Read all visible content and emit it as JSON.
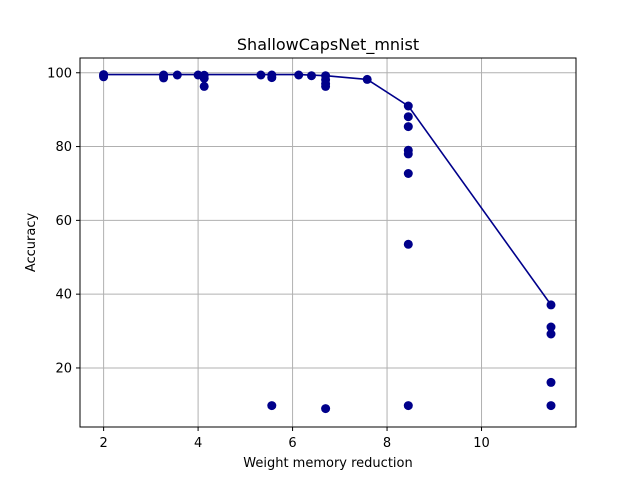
{
  "chart_data": {
    "type": "scatter",
    "title": "ShallowCapsNet_mnist",
    "xlabel": "Weight memory reduction",
    "ylabel": "Accuracy",
    "xlim": [
      1.5,
      12.0
    ],
    "ylim": [
      4.0,
      104.0
    ],
    "xticks": [
      2,
      4,
      6,
      8,
      10
    ],
    "yticks": [
      20,
      40,
      60,
      80,
      100
    ],
    "grid": true,
    "colors": {
      "marker": "#00008b",
      "line": "#00008b",
      "grid": "#b0b0b0"
    },
    "points": [
      {
        "x": 2.0,
        "y": 99.5
      },
      {
        "x": 2.0,
        "y": 99.2
      },
      {
        "x": 2.0,
        "y": 98.9
      },
      {
        "x": 3.27,
        "y": 99.4
      },
      {
        "x": 3.27,
        "y": 99.1
      },
      {
        "x": 3.27,
        "y": 98.6
      },
      {
        "x": 3.56,
        "y": 99.4
      },
      {
        "x": 4.0,
        "y": 99.4
      },
      {
        "x": 4.13,
        "y": 99.3
      },
      {
        "x": 4.13,
        "y": 98.5
      },
      {
        "x": 4.13,
        "y": 96.3
      },
      {
        "x": 5.33,
        "y": 99.4
      },
      {
        "x": 5.56,
        "y": 99.4
      },
      {
        "x": 5.56,
        "y": 98.7
      },
      {
        "x": 5.56,
        "y": 9.8
      },
      {
        "x": 6.13,
        "y": 99.4
      },
      {
        "x": 6.4,
        "y": 99.2
      },
      {
        "x": 6.7,
        "y": 99.2
      },
      {
        "x": 6.7,
        "y": 98.1
      },
      {
        "x": 6.7,
        "y": 97.0
      },
      {
        "x": 6.7,
        "y": 96.3
      },
      {
        "x": 6.7,
        "y": 9.0
      },
      {
        "x": 7.58,
        "y": 98.2
      },
      {
        "x": 8.45,
        "y": 91.0
      },
      {
        "x": 8.45,
        "y": 88.1
      },
      {
        "x": 8.45,
        "y": 85.4
      },
      {
        "x": 8.45,
        "y": 79.0
      },
      {
        "x": 8.45,
        "y": 78.0
      },
      {
        "x": 8.45,
        "y": 72.7
      },
      {
        "x": 8.45,
        "y": 53.5
      },
      {
        "x": 8.45,
        "y": 9.8
      },
      {
        "x": 11.47,
        "y": 37.1
      },
      {
        "x": 11.47,
        "y": 31.1
      },
      {
        "x": 11.47,
        "y": 29.2
      },
      {
        "x": 11.47,
        "y": 16.1
      },
      {
        "x": 11.47,
        "y": 9.8
      }
    ],
    "frontier": {
      "x": [
        2.0,
        6.13,
        6.7,
        7.58,
        8.45,
        11.47
      ],
      "y": [
        99.5,
        99.5,
        99.2,
        98.2,
        91.0,
        37.1
      ]
    }
  }
}
